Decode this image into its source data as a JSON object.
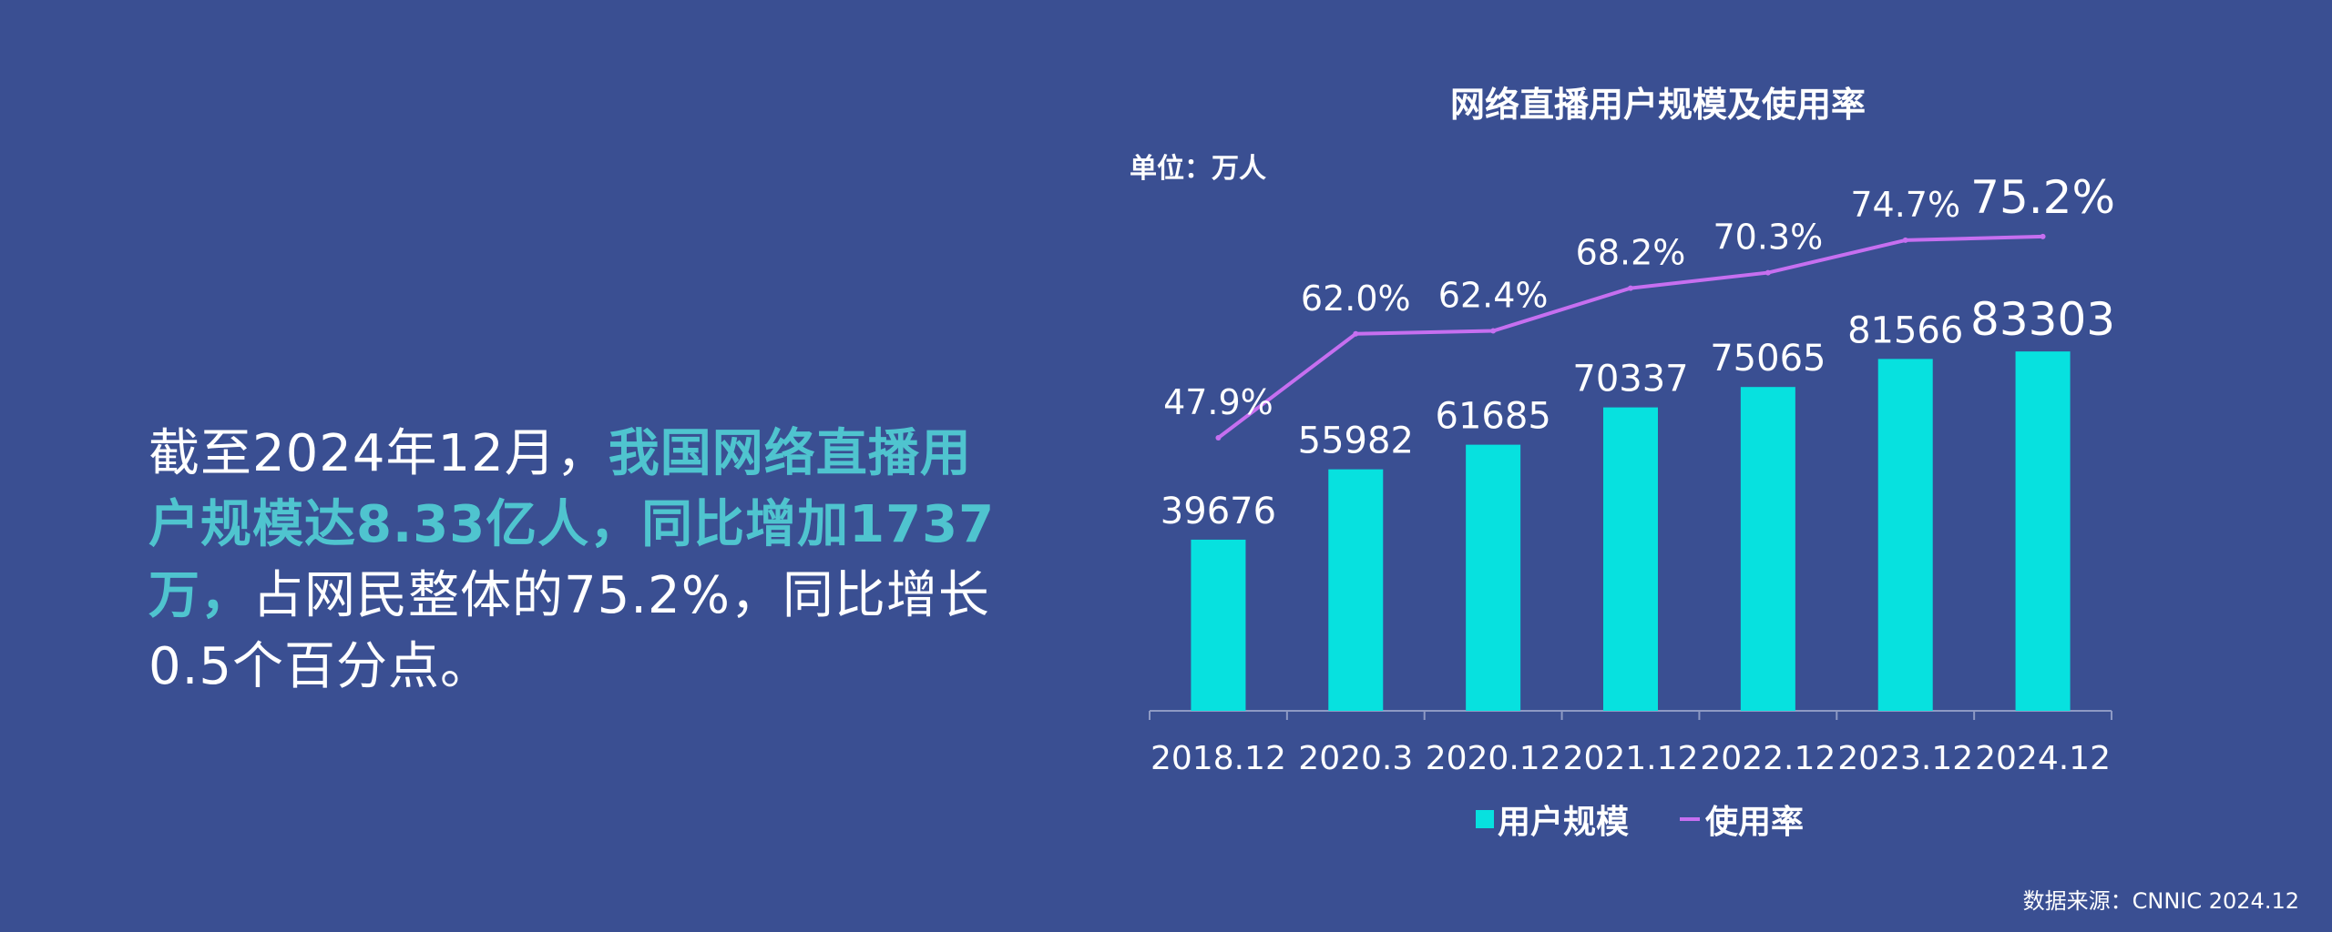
{
  "headline": {
    "part1": "截至2024年12月，",
    "highlight": "我国网络直播用户规模达8.33亿人，同比增加1737万，",
    "part2": "占网民整体的75.2%，同比增长0.5个百分点。"
  },
  "chart_data": {
    "type": "bar",
    "title": "网络直播用户规模及使用率",
    "unit": "单位：万人",
    "categories": [
      "2018.12",
      "2020.3",
      "2020.12",
      "2021.12",
      "2022.12",
      "2023.12",
      "2024.12"
    ],
    "series": [
      {
        "name": "用户规模",
        "type": "bar",
        "color": "#07e1df",
        "values": [
          39676,
          55982,
          61685,
          70337,
          75065,
          81566,
          83303
        ],
        "labels": [
          "39676",
          "55982",
          "61685",
          "70337",
          "75065",
          "81566",
          "83303"
        ]
      },
      {
        "name": "使用率",
        "type": "line",
        "color": "#c66ff0",
        "values": [
          47.9,
          62.0,
          62.4,
          68.2,
          70.3,
          74.7,
          75.2
        ],
        "labels": [
          "47.9%",
          "62.0%",
          "62.4%",
          "68.2%",
          "70.3%",
          "74.7%",
          "75.2%"
        ]
      }
    ],
    "legend_position": "bottom",
    "grid": false
  },
  "source": "数据来源：CNNIC 2024.12"
}
